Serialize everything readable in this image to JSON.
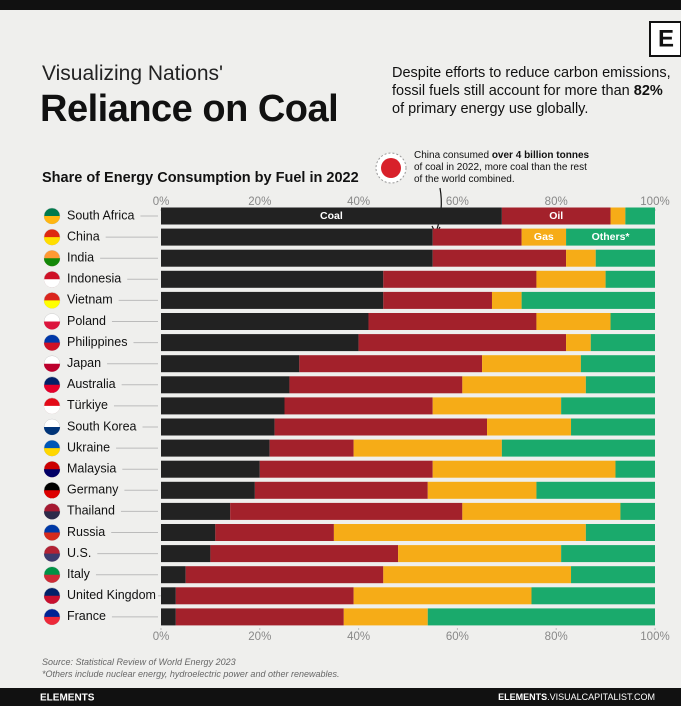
{
  "header": {
    "kicker": "Visualizing Nations'",
    "title": "Reliance on Coal",
    "logo": "E",
    "description": [
      "Despite efforts to reduce carbon emissions,",
      "fossil fuels still account for more than ",
      "82%",
      " of primary energy use globally."
    ]
  },
  "chart_data": {
    "type": "bar",
    "orientation": "horizontal",
    "stacked": true,
    "title": "Share of Energy Consumption by Fuel in 2022",
    "categories": [
      "South Africa",
      "China",
      "India",
      "Indonesia",
      "Vietnam",
      "Poland",
      "Philippines",
      "Japan",
      "Australia",
      "Türkiye",
      "South Korea",
      "Ukraine",
      "Malaysia",
      "Germany",
      "Thailand",
      "Russia",
      "U.S.",
      "Italy",
      "United Kingdom",
      "France"
    ],
    "series": [
      {
        "name": "Coal",
        "color": "#222222",
        "values": [
          69,
          55,
          55,
          45,
          45,
          42,
          40,
          28,
          26,
          25,
          23,
          22,
          20,
          19,
          14,
          11,
          10,
          5,
          3,
          3
        ]
      },
      {
        "name": "Oil",
        "color": "#a3212b",
        "values": [
          22,
          18,
          27,
          31,
          22,
          34,
          42,
          37,
          35,
          30,
          43,
          17,
          35,
          35,
          47,
          24,
          38,
          40,
          36,
          34
        ]
      },
      {
        "name": "Gas",
        "color": "#f6ac17",
        "values": [
          3,
          9,
          6,
          14,
          6,
          15,
          5,
          20,
          25,
          26,
          17,
          30,
          37,
          22,
          32,
          51,
          33,
          38,
          36,
          17
        ]
      },
      {
        "name": "Others*",
        "color": "#1aaa6c",
        "values": [
          6,
          18,
          12,
          10,
          27,
          9,
          13,
          15,
          14,
          19,
          17,
          31,
          8,
          24,
          7,
          14,
          19,
          17,
          25,
          46
        ]
      }
    ],
    "xlim": [
      0,
      100
    ],
    "xticks": [
      {
        "value": 0,
        "label": "0%"
      },
      {
        "value": 20,
        "label": "20%"
      },
      {
        "value": 40,
        "label": "40%"
      },
      {
        "value": 60,
        "label": "60%"
      },
      {
        "value": 80,
        "label": "80%"
      },
      {
        "value": 100,
        "label": "100%"
      }
    ],
    "annotation": [
      "China consumed ",
      "over 4 billion tonnes",
      " of coal in 2022, more coal than the rest of the world combined."
    ]
  },
  "footer": {
    "source": "Source: Statistical Review of World Energy 2023",
    "note": "*Others include nuclear energy, hydroelectric power and other renewables.",
    "brand": "ELEMENTS",
    "url_bold": "ELEMENTS",
    ".url_rest": "",
    "url_rest": ".VISUALCAPITALIST.COM"
  }
}
